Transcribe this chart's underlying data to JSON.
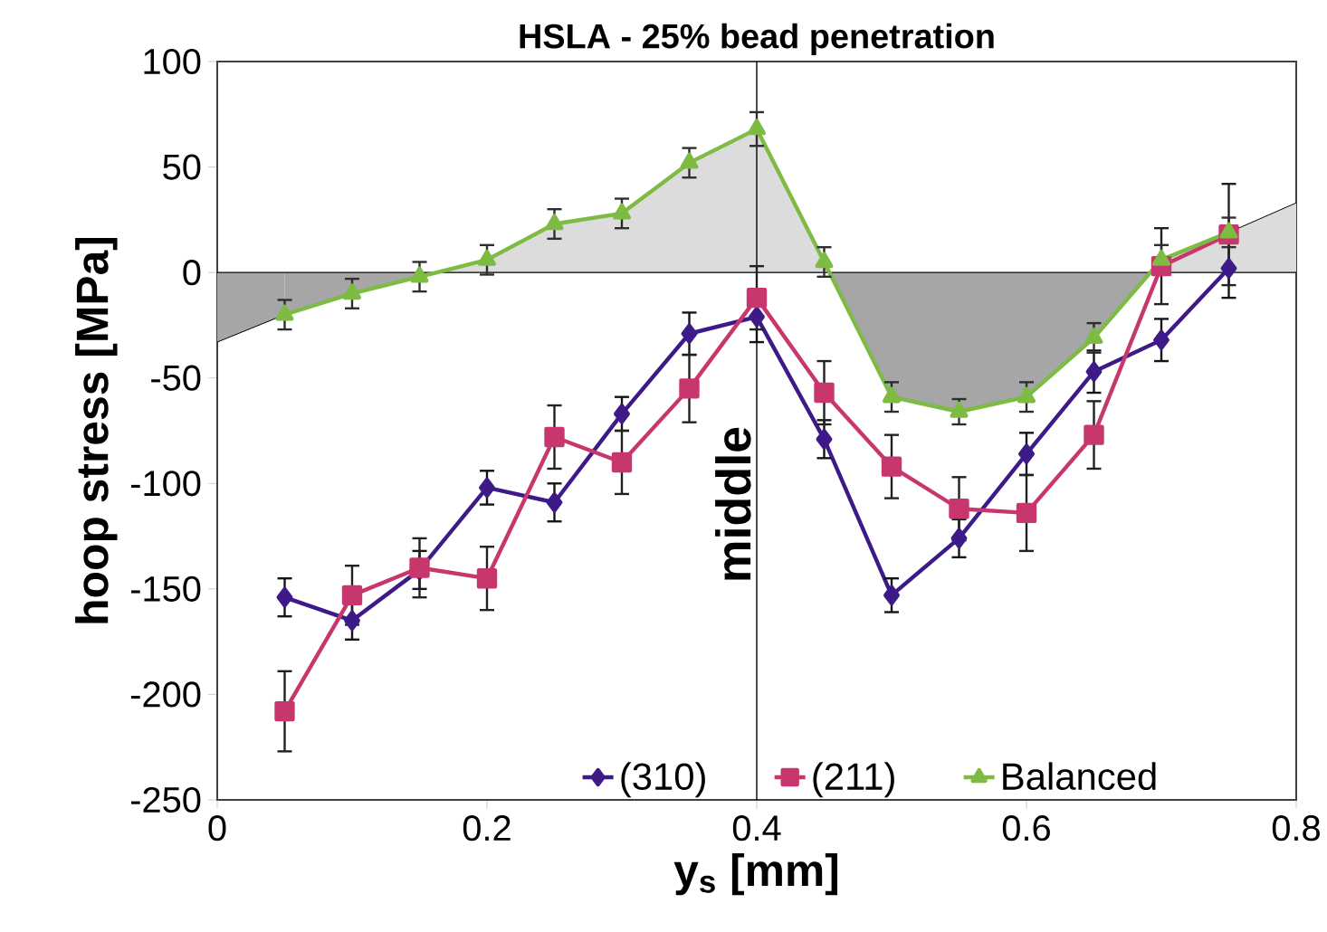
{
  "chart_data": {
    "type": "line",
    "title": "HSLA - 25% bead penetration",
    "xlabel": "y$_{s}$ [mm]",
    "ylabel": "hoop stress [MPa]",
    "xlim": [
      0,
      0.8
    ],
    "xticks": [
      0,
      0.2,
      0.4,
      0.6,
      0.8
    ],
    "ylim": [
      -250,
      100
    ],
    "yticks": [
      -250,
      -200,
      -150,
      -100,
      -50,
      0,
      50,
      100
    ],
    "grid": false,
    "legend": "bottom",
    "ref_lines": [
      {
        "axis": "x",
        "value": 0.4,
        "label": "middle",
        "color": "#000000"
      }
    ],
    "series": [
      {
        "name": "(310)",
        "color": "#3d1a87",
        "marker": "diamond",
        "x": [
          0.05,
          0.1,
          0.15,
          0.2,
          0.25,
          0.3,
          0.35,
          0.4,
          0.45,
          0.5,
          0.55,
          0.6,
          0.65,
          0.7,
          0.75
        ],
        "values": [
          -154,
          -165,
          -141,
          -102,
          -109,
          -67,
          -29,
          -21,
          -79,
          -153,
          -126,
          -86,
          -47,
          -32,
          2
        ],
        "errors": [
          9,
          9,
          9,
          8,
          9,
          8,
          10,
          12,
          9,
          8,
          9,
          10,
          10,
          10,
          14
        ]
      },
      {
        "name": "(211)",
        "color": "#c8366e",
        "marker": "square",
        "x": [
          0.05,
          0.1,
          0.15,
          0.2,
          0.25,
          0.3,
          0.35,
          0.4,
          0.45,
          0.5,
          0.55,
          0.6,
          0.65,
          0.7,
          0.75
        ],
        "values": [
          -208,
          -153,
          -140,
          -145,
          -78,
          -90,
          -55,
          -12,
          -57,
          -92,
          -112,
          -114,
          -77,
          3,
          18
        ],
        "errors": [
          19,
          14,
          14,
          15,
          15,
          15,
          16,
          15,
          15,
          15,
          15,
          18,
          16,
          18,
          24
        ]
      },
      {
        "name": "Balanced",
        "type": "area",
        "color": "#7dbb42",
        "marker": "triangle",
        "colors": [
          "#a6a6a6",
          "#a6a6a6",
          "#a6a6a6",
          "#dcdcdc",
          "#dcdcdc",
          "#dcdcdc",
          "#dcdcdc",
          "#dcdcdc",
          "#dcdcdc",
          "#a6a6a6",
          "#a6a6a6",
          "#a6a6a6",
          "#a6a6a6",
          "#dcdcdc",
          "#dcdcdc"
        ],
        "x": [
          0.05,
          0.1,
          0.15,
          0.2,
          0.25,
          0.3,
          0.35,
          0.4,
          0.45,
          0.5,
          0.55,
          0.6,
          0.65,
          0.7,
          0.75
        ],
        "values": [
          -20,
          -10,
          -2,
          6,
          23,
          28,
          52,
          68,
          5,
          -59,
          -66,
          -59,
          -31,
          6,
          19
        ],
        "errors": [
          7,
          7,
          7,
          7,
          7,
          7,
          7,
          8,
          7,
          7,
          6,
          7,
          7,
          7,
          7
        ]
      },
      {
        "type": "area",
        "color": "#000000",
        "marker": "none",
        "colors": [
          "#a6a6a6",
          "#a6a6a6"
        ],
        "x": [
          0,
          0.05
        ],
        "values": [
          -33,
          -20
        ]
      },
      {
        "type": "area",
        "color": "#000000",
        "marker": "none",
        "colors": [
          "#dcdcdc",
          "#dcdcdc"
        ],
        "x": [
          0.75,
          0.8
        ],
        "values": [
          19,
          33
        ]
      }
    ]
  }
}
